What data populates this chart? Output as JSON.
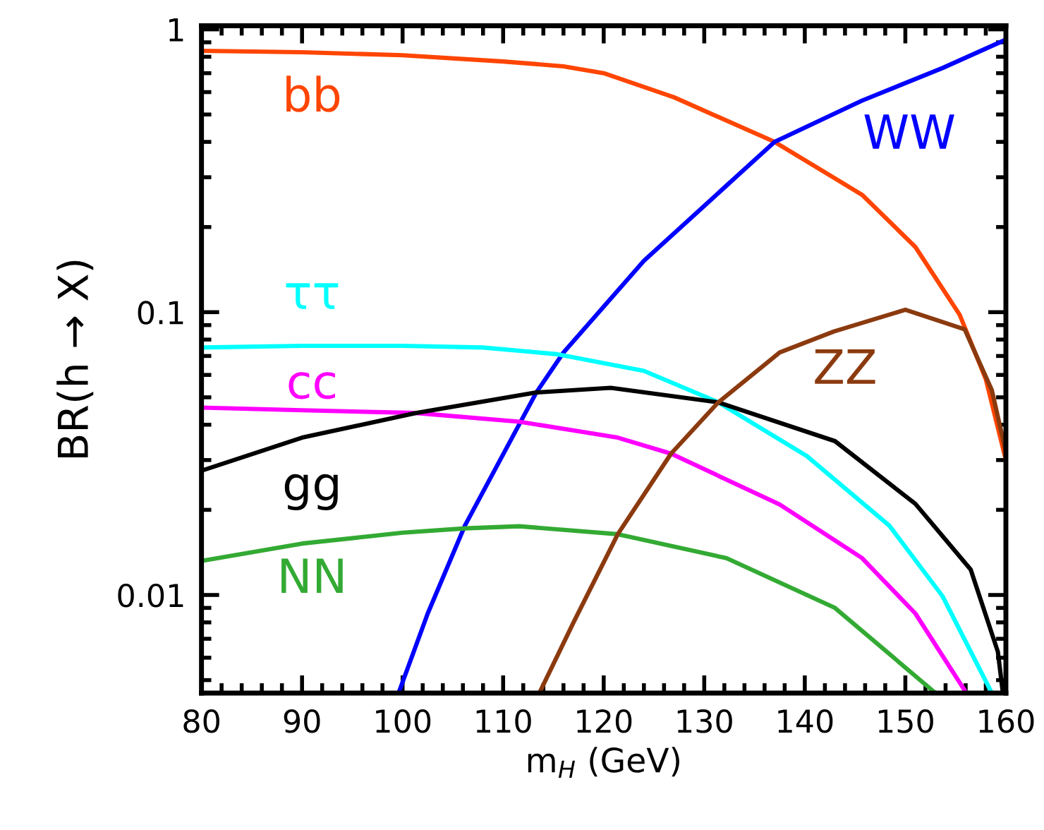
{
  "chart_data": {
    "type": "line",
    "xlabel": "m$_{H}$ (GeV)",
    "ylabel": "BR(h → X)",
    "log": "y",
    "xlim": [
      80,
      160
    ],
    "xticks": [
      80,
      90,
      100,
      110,
      120,
      130,
      140,
      150,
      160
    ],
    "ylim": [
      0.0045,
      1.03
    ],
    "yticks": [
      0.01,
      0.1,
      1
    ],
    "grid": false,
    "legend": false,
    "marker": "none",
    "line_style": "solid",
    "series": [
      {
        "color": "#ff4500",
        "x": [
          80,
          90,
          100,
          110,
          116,
          120,
          127,
          137,
          145.7,
          151,
          155.4,
          158,
          160
        ],
        "values": [
          0.84,
          0.83,
          0.81,
          0.77,
          0.74,
          0.7,
          0.575,
          0.4,
          0.26,
          0.17,
          0.098,
          0.058,
          0.03
        ]
      },
      {
        "color": "#0000ff",
        "x": [
          99.6,
          102.5,
          106.2,
          113.3,
          116,
          124,
          132.2,
          137,
          145.7,
          153.7,
          160
        ],
        "values": [
          0.0045,
          0.0086,
          0.0176,
          0.052,
          0.072,
          0.152,
          0.28,
          0.4,
          0.56,
          0.73,
          0.92
        ]
      },
      {
        "color": "#00ffff",
        "x": [
          80,
          90,
          100,
          108,
          115.4,
          124,
          131.4,
          140.2,
          148.4,
          153.7,
          158.6
        ],
        "values": [
          0.075,
          0.076,
          0.076,
          0.075,
          0.071,
          0.062,
          0.048,
          0.031,
          0.0176,
          0.0099,
          0.0045
        ]
      },
      {
        "color": "#ff00ff",
        "x": [
          80,
          90,
          101.3,
          111.6,
          121.4,
          126.7,
          137.5,
          145.7,
          151,
          155.9
        ],
        "values": [
          0.046,
          0.045,
          0.044,
          0.041,
          0.036,
          0.0316,
          0.0209,
          0.0135,
          0.0086,
          0.0046
        ]
      },
      {
        "color": "#000000",
        "x": [
          80,
          90,
          101.3,
          113.3,
          120.7,
          131.4,
          143,
          151,
          156.5,
          159.2,
          159.7
        ],
        "values": [
          0.0275,
          0.036,
          0.044,
          0.052,
          0.054,
          0.048,
          0.035,
          0.021,
          0.0123,
          0.0063,
          0.0045
        ]
      },
      {
        "color": "#33aa33",
        "x": [
          80,
          90,
          100,
          106.2,
          111.6,
          121.4,
          132.2,
          143,
          153
        ],
        "values": [
          0.0132,
          0.0152,
          0.0166,
          0.0172,
          0.0175,
          0.0164,
          0.0135,
          0.009,
          0.0045
        ]
      },
      {
        "color": "#8b3a0f",
        "x": [
          113.6,
          117,
          121.4,
          126.7,
          131.4,
          137.5,
          142.9,
          150,
          155.9,
          158.6,
          160
        ],
        "values": [
          0.0045,
          0.008,
          0.0164,
          0.0316,
          0.048,
          0.072,
          0.0855,
          0.102,
          0.087,
          0.053,
          0.032
        ]
      }
    ],
    "annotations": [
      "bb",
      "WW",
      "ττ",
      "cc",
      "gg",
      "NN",
      "ZZ"
    ]
  }
}
